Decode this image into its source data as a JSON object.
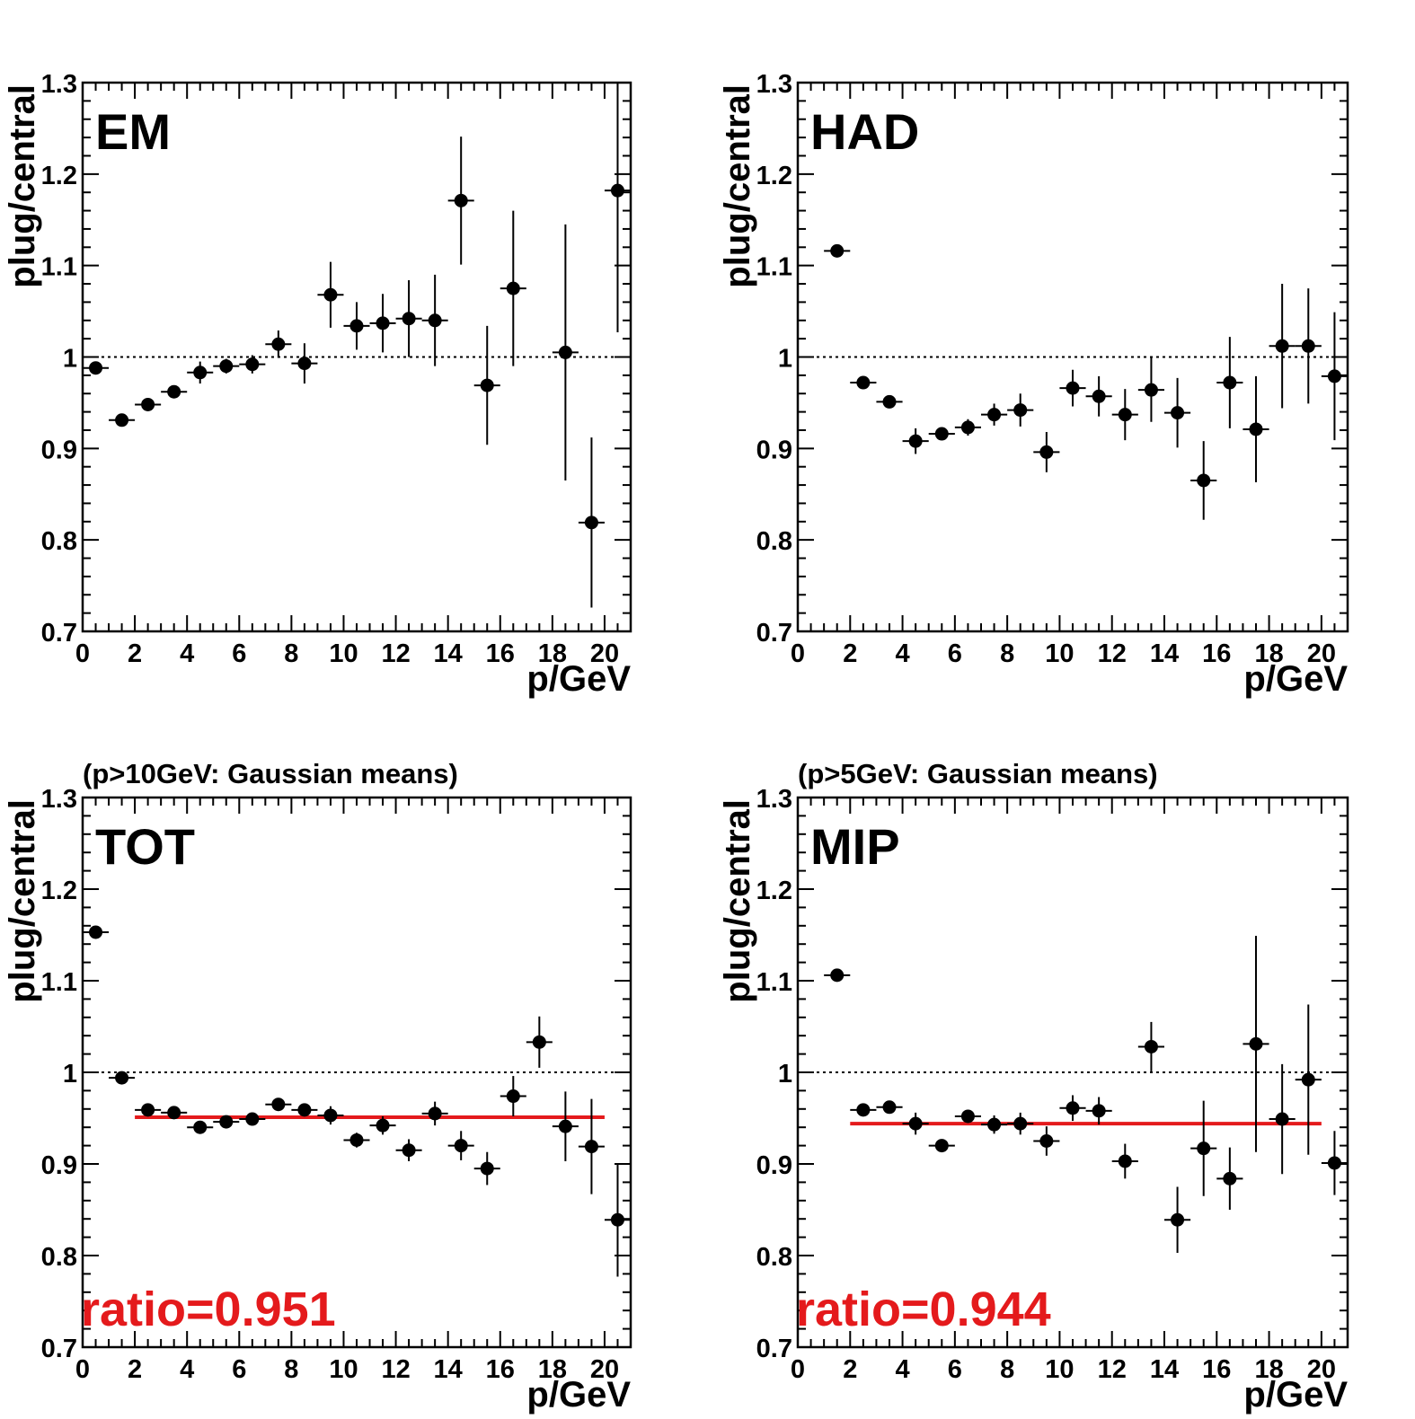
{
  "colors": {
    "axis": "#000000",
    "marker": "#000000",
    "fit": "#e41a1c",
    "ratio_text": "#e41a1c"
  },
  "chart_data": [
    {
      "type": "scatter",
      "panel_label": "EM",
      "subtitle": "",
      "xlabel": "p/GeV",
      "ylabel": "plug/central",
      "xlim": [
        0,
        21
      ],
      "ylim": [
        0.7,
        1.3
      ],
      "xticks": [
        "0",
        "2",
        "4",
        "6",
        "8",
        "10",
        "12",
        "14",
        "16",
        "18",
        "20"
      ],
      "yticks": [
        "0.7",
        "0.8",
        "0.9",
        "1",
        "1.1",
        "1.2",
        "1.3"
      ],
      "reference_line": 1.0,
      "grid": false,
      "x_halfwidth": 0.5,
      "series": [
        {
          "x": [
            0.5,
            1.5,
            2.5,
            3.5,
            4.5,
            5.5,
            6.5,
            7.5,
            8.5,
            9.5,
            10.5,
            11.5,
            12.5,
            13.5,
            14.5,
            15.5,
            16.5,
            18.5,
            19.5,
            20.5
          ],
          "y": [
            0.988,
            0.931,
            0.948,
            0.962,
            0.983,
            0.99,
            0.992,
            1.014,
            0.993,
            1.068,
            1.034,
            1.037,
            1.042,
            1.04,
            1.171,
            0.969,
            1.075,
            1.005,
            0.819,
            1.182
          ],
          "yerr": [
            0.004,
            0.004,
            0.005,
            0.006,
            0.012,
            0.008,
            0.01,
            0.015,
            0.022,
            0.036,
            0.026,
            0.032,
            0.042,
            0.05,
            0.07,
            0.065,
            0.085,
            0.14,
            0.093,
            0.155
          ]
        }
      ],
      "fit": null
    },
    {
      "type": "scatter",
      "panel_label": "HAD",
      "subtitle": "",
      "xlabel": "p/GeV",
      "ylabel": "plug/central",
      "xlim": [
        0,
        21
      ],
      "ylim": [
        0.7,
        1.3
      ],
      "xticks": [
        "0",
        "2",
        "4",
        "6",
        "8",
        "10",
        "12",
        "14",
        "16",
        "18",
        "20"
      ],
      "yticks": [
        "0.7",
        "0.8",
        "0.9",
        "1",
        "1.1",
        "1.2",
        "1.3"
      ],
      "reference_line": 1.0,
      "grid": false,
      "x_halfwidth": 0.5,
      "series": [
        {
          "x": [
            1.5,
            2.5,
            3.5,
            4.5,
            5.5,
            6.5,
            7.5,
            8.5,
            9.5,
            10.5,
            11.5,
            12.5,
            13.5,
            14.5,
            15.5,
            16.5,
            17.5,
            18.5,
            19.5,
            20.5
          ],
          "y": [
            1.116,
            0.972,
            0.951,
            0.908,
            0.916,
            0.923,
            0.937,
            0.942,
            0.896,
            0.966,
            0.957,
            0.937,
            0.964,
            0.939,
            0.865,
            0.972,
            0.921,
            1.012,
            1.012,
            0.979
          ],
          "yerr": [
            0.003,
            0.004,
            0.007,
            0.014,
            0.006,
            0.009,
            0.012,
            0.018,
            0.022,
            0.02,
            0.022,
            0.028,
            0.035,
            0.038,
            0.043,
            0.05,
            0.058,
            0.068,
            0.063,
            0.07
          ]
        }
      ],
      "fit": null
    },
    {
      "type": "scatter",
      "panel_label": "TOT",
      "subtitle": "(p>10GeV: Gaussian means)",
      "xlabel": "p/GeV",
      "ylabel": "plug/central",
      "xlim": [
        0,
        21
      ],
      "ylim": [
        0.7,
        1.3
      ],
      "xticks": [
        "0",
        "2",
        "4",
        "6",
        "8",
        "10",
        "12",
        "14",
        "16",
        "18",
        "20"
      ],
      "yticks": [
        "0.7",
        "0.8",
        "0.9",
        "1",
        "1.1",
        "1.2",
        "1.3"
      ],
      "reference_line": 1.0,
      "grid": false,
      "x_halfwidth": 0.5,
      "series": [
        {
          "x": [
            0.5,
            1.5,
            2.5,
            3.5,
            4.5,
            5.5,
            6.5,
            7.5,
            8.5,
            9.5,
            10.5,
            11.5,
            12.5,
            13.5,
            14.5,
            15.5,
            16.5,
            17.5,
            18.5,
            19.5,
            20.5
          ],
          "y": [
            1.153,
            0.994,
            0.959,
            0.956,
            0.94,
            0.946,
            0.949,
            0.965,
            0.959,
            0.953,
            0.926,
            0.942,
            0.915,
            0.955,
            0.92,
            0.895,
            0.974,
            1.033,
            0.941,
            0.919,
            0.839
          ],
          "yerr": [
            0.002,
            0.003,
            0.004,
            0.004,
            0.004,
            0.004,
            0.005,
            0.006,
            0.006,
            0.01,
            0.008,
            0.01,
            0.012,
            0.013,
            0.016,
            0.018,
            0.022,
            0.028,
            0.038,
            0.052,
            0.062
          ]
        }
      ],
      "fit": {
        "value": 0.951,
        "x_from": 2,
        "x_to": 20
      },
      "ratio_label": "ratio=0.951"
    },
    {
      "type": "scatter",
      "panel_label": "MIP",
      "subtitle": "(p>5GeV: Gaussian means)",
      "xlabel": "p/GeV",
      "ylabel": "plug/central",
      "xlim": [
        0,
        21
      ],
      "ylim": [
        0.7,
        1.3
      ],
      "xticks": [
        "0",
        "2",
        "4",
        "6",
        "8",
        "10",
        "12",
        "14",
        "16",
        "18",
        "20"
      ],
      "yticks": [
        "0.7",
        "0.8",
        "0.9",
        "1",
        "1.1",
        "1.2",
        "1.3"
      ],
      "reference_line": 1.0,
      "grid": false,
      "x_halfwidth": 0.5,
      "series": [
        {
          "x": [
            1.5,
            2.5,
            3.5,
            4.5,
            5.5,
            6.5,
            7.5,
            8.5,
            9.5,
            10.5,
            11.5,
            12.5,
            13.5,
            14.5,
            15.5,
            16.5,
            17.5,
            18.5,
            19.5,
            20.5
          ],
          "y": [
            1.106,
            0.959,
            0.962,
            0.944,
            0.92,
            0.952,
            0.943,
            0.944,
            0.925,
            0.961,
            0.958,
            0.903,
            1.028,
            0.839,
            0.917,
            0.884,
            1.031,
            0.949,
            0.992,
            0.901
          ],
          "yerr": [
            0.003,
            0.004,
            0.006,
            0.012,
            0.005,
            0.007,
            0.01,
            0.012,
            0.016,
            0.014,
            0.015,
            0.019,
            0.027,
            0.036,
            0.052,
            0.034,
            0.118,
            0.06,
            0.082,
            0.035
          ]
        }
      ],
      "fit": {
        "value": 0.944,
        "x_from": 2,
        "x_to": 20
      },
      "ratio_label": "ratio=0.944"
    }
  ]
}
